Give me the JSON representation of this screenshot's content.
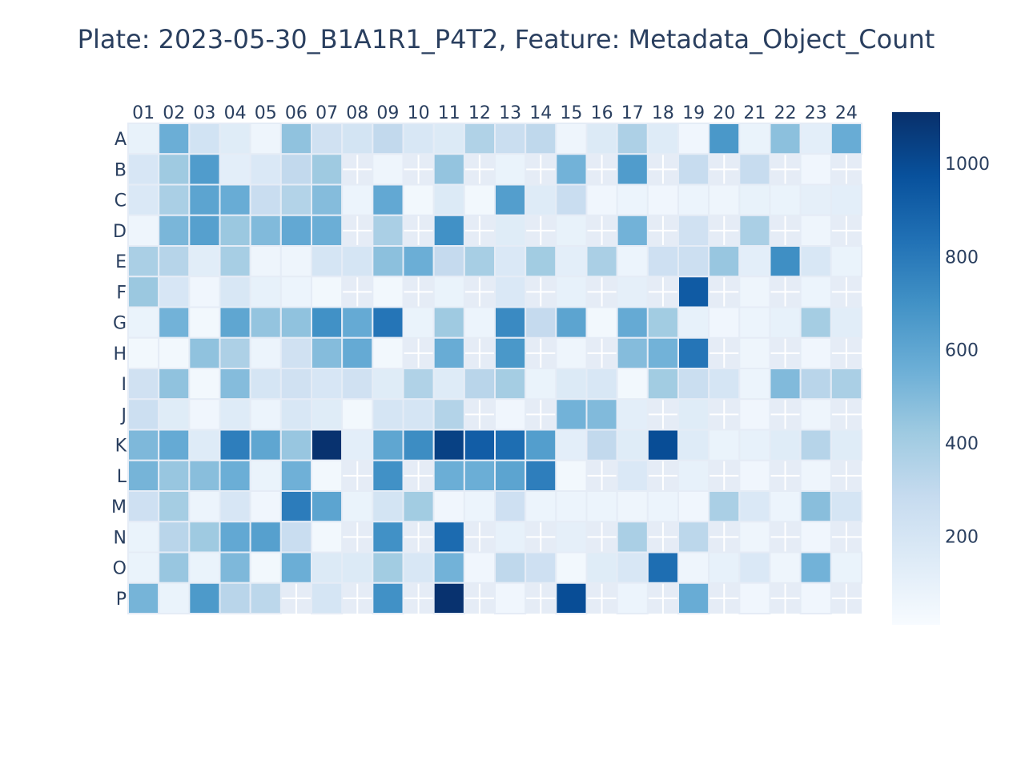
{
  "chart_data": {
    "type": "heatmap",
    "title": "Plate: 2023-05-30_B1A1R1_P4T2, Feature: Metadata_Object_Count",
    "x": [
      "01",
      "02",
      "03",
      "04",
      "05",
      "06",
      "07",
      "08",
      "09",
      "10",
      "11",
      "12",
      "13",
      "14",
      "15",
      "16",
      "17",
      "18",
      "19",
      "20",
      "21",
      "22",
      "23",
      "24"
    ],
    "y": [
      "A",
      "B",
      "C",
      "D",
      "E",
      "F",
      "G",
      "H",
      "I",
      "J",
      "K",
      "L",
      "M",
      "N",
      "O",
      "P"
    ],
    "z": [
      [
        90,
        560,
        220,
        140,
        60,
        460,
        230,
        210,
        300,
        180,
        160,
        360,
        260,
        310,
        60,
        160,
        370,
        150,
        50,
        670,
        80,
        470,
        120,
        570
      ],
      [
        190,
        420,
        650,
        120,
        170,
        300,
        420,
        null,
        60,
        null,
        450,
        null,
        80,
        null,
        540,
        null,
        650,
        null,
        280,
        null,
        280,
        null,
        50,
        null
      ],
      [
        170,
        380,
        610,
        570,
        270,
        350,
        490,
        70,
        590,
        40,
        160,
        40,
        640,
        150,
        270,
        50,
        70,
        50,
        70,
        60,
        90,
        80,
        110,
        120
      ],
      [
        60,
        520,
        630,
        430,
        500,
        590,
        560,
        null,
        380,
        null,
        700,
        null,
        140,
        null,
        90,
        null,
        540,
        null,
        230,
        null,
        380,
        null,
        60,
        null
      ],
      [
        380,
        340,
        130,
        390,
        60,
        60,
        200,
        200,
        470,
        560,
        290,
        390,
        170,
        410,
        120,
        380,
        70,
        240,
        250,
        440,
        120,
        710,
        180,
        80
      ],
      [
        430,
        190,
        50,
        180,
        100,
        70,
        40,
        null,
        40,
        null,
        80,
        null,
        170,
        null,
        100,
        null,
        110,
        null,
        930,
        null,
        60,
        null,
        70,
        null
      ],
      [
        80,
        540,
        40,
        600,
        450,
        460,
        700,
        580,
        820,
        80,
        420,
        70,
        730,
        290,
        610,
        40,
        580,
        410,
        100,
        50,
        70,
        100,
        400,
        130
      ],
      [
        40,
        40,
        460,
        370,
        70,
        230,
        490,
        580,
        40,
        null,
        570,
        null,
        670,
        null,
        60,
        null,
        490,
        540,
        820,
        null,
        60,
        null,
        50,
        null
      ],
      [
        230,
        460,
        40,
        490,
        200,
        230,
        190,
        230,
        140,
        360,
        150,
        330,
        400,
        80,
        160,
        180,
        40,
        410,
        260,
        200,
        70,
        500,
        330,
        380
      ],
      [
        250,
        140,
        50,
        150,
        70,
        180,
        140,
        40,
        200,
        200,
        350,
        null,
        50,
        null,
        540,
        500,
        120,
        null,
        140,
        null,
        50,
        null,
        60,
        null
      ],
      [
        510,
        580,
        150,
        780,
        600,
        440,
        1100,
        120,
        600,
        720,
        1040,
        920,
        850,
        640,
        120,
        300,
        140,
        990,
        150,
        80,
        100,
        140,
        340,
        140
      ],
      [
        530,
        440,
        480,
        560,
        80,
        550,
        40,
        null,
        700,
        null,
        560,
        560,
        610,
        780,
        40,
        null,
        170,
        null,
        100,
        null,
        50,
        null,
        60,
        null
      ],
      [
        240,
        400,
        70,
        190,
        50,
        790,
        610,
        80,
        210,
        410,
        50,
        70,
        240,
        70,
        70,
        70,
        60,
        70,
        50,
        380,
        170,
        70,
        480,
        200
      ],
      [
        80,
        330,
        420,
        590,
        630,
        270,
        40,
        null,
        700,
        null,
        860,
        null,
        100,
        null,
        110,
        null,
        380,
        null,
        320,
        null,
        60,
        null,
        50,
        null
      ],
      [
        80,
        440,
        80,
        510,
        40,
        560,
        160,
        160,
        410,
        180,
        540,
        50,
        310,
        240,
        40,
        140,
        180,
        850,
        60,
        100,
        170,
        60,
        540,
        80
      ],
      [
        530,
        80,
        660,
        330,
        320,
        null,
        200,
        null,
        700,
        null,
        1100,
        null,
        50,
        null,
        990,
        null,
        70,
        null,
        570,
        null,
        50,
        null,
        50,
        null
      ]
    ],
    "zmin": 10,
    "zmax": 1110,
    "colorscale": "Blues",
    "colorbar_ticks": [
      200,
      400,
      600,
      800,
      1000
    ],
    "grid_color": "#e5ecf6",
    "missing_color": "#e5ecf6",
    "text_color": "#2a3f5f",
    "colorscale_stops": [
      "#f7fbff",
      "#deebf7",
      "#c6dbef",
      "#9ecae1",
      "#6baed6",
      "#4292c6",
      "#2171b5",
      "#08519c",
      "#08306b"
    ]
  }
}
